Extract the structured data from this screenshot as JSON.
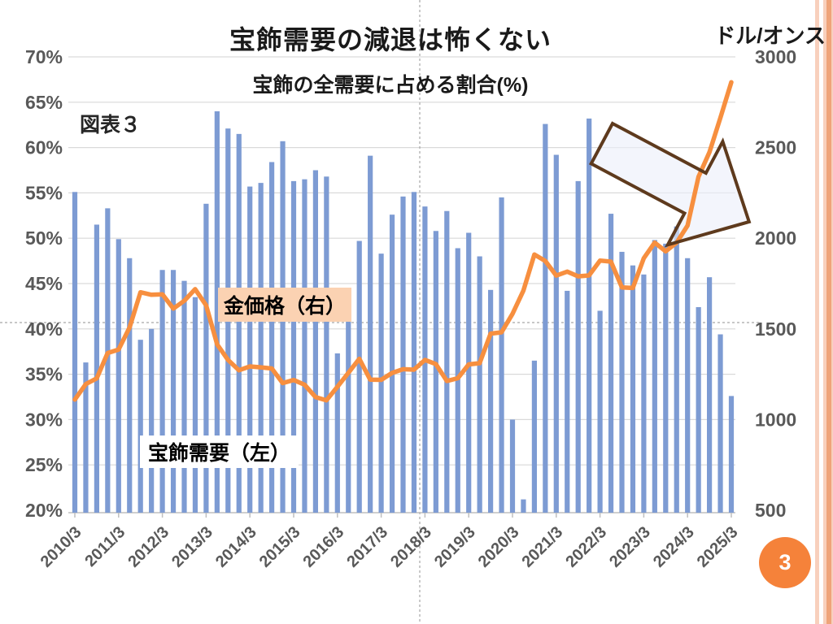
{
  "slide": {
    "title": "宝飾需要の減退は怖くない",
    "subtitle": "宝飾の全需要に占める割合(%)",
    "figure_label": "図表３",
    "right_axis_unit": "ドル/オンス",
    "page_number": "3"
  },
  "series_labels": {
    "bars": "宝飾需要（左）",
    "line": "金価格（右）"
  },
  "axes": {
    "left_ticks": [
      "70%",
      "65%",
      "60%",
      "55%",
      "50%",
      "45%",
      "40%",
      "35%",
      "30%",
      "25%",
      "20%"
    ],
    "right_ticks": [
      "3000",
      "2500",
      "2000",
      "1500",
      "1000",
      "500"
    ],
    "x_ticks": [
      "2010/3",
      "2011/3",
      "2012/3",
      "2013/3",
      "2014/3",
      "2015/3",
      "2016/3",
      "2017/3",
      "2018/3",
      "2019/3",
      "2020/3",
      "2021/3",
      "2022/3",
      "2023/3",
      "2024/3",
      "2025/3"
    ]
  },
  "colors": {
    "bar": "#7d9bd3",
    "line": "#f78f3f",
    "gridline": "#d9d9d9",
    "axis_line": "#bfbfbf",
    "tick_text": "#595959",
    "guide": "#a6a6a6",
    "arrow_fill": "#ebeffa",
    "arrow_stroke": "#5e3a1d",
    "line_label_bg": "#fbd2b2",
    "badge": "#f5823a",
    "stripe_light": "#f8d0bd",
    "stripe_dark": "#efa47a"
  },
  "chart_data": {
    "type": "combo (bar + line)",
    "x_frequency": "quarterly",
    "x": [
      "2010/3",
      "2010/6",
      "2010/9",
      "2010/12",
      "2011/3",
      "2011/6",
      "2011/9",
      "2011/12",
      "2012/3",
      "2012/6",
      "2012/9",
      "2012/12",
      "2013/3",
      "2013/6",
      "2013/9",
      "2013/12",
      "2014/3",
      "2014/6",
      "2014/9",
      "2014/12",
      "2015/3",
      "2015/6",
      "2015/9",
      "2015/12",
      "2016/3",
      "2016/6",
      "2016/9",
      "2016/12",
      "2017/3",
      "2017/6",
      "2017/9",
      "2017/12",
      "2018/3",
      "2018/6",
      "2018/9",
      "2018/12",
      "2019/3",
      "2019/6",
      "2019/9",
      "2019/12",
      "2020/3",
      "2020/6",
      "2020/9",
      "2020/12",
      "2021/3",
      "2021/6",
      "2021/9",
      "2021/12",
      "2022/3",
      "2022/6",
      "2022/9",
      "2022/12",
      "2023/3",
      "2023/6",
      "2023/9",
      "2023/12",
      "2024/3",
      "2024/6",
      "2024/9",
      "2024/12",
      "2025/3"
    ],
    "series": [
      {
        "name": "宝飾需要（左）",
        "type": "bar",
        "axis": "left",
        "unit": "%",
        "values": [
          55.1,
          36.3,
          51.5,
          53.3,
          49.9,
          47.8,
          38.8,
          40.0,
          46.5,
          46.5,
          45.3,
          43.5,
          53.8,
          64.0,
          62.1,
          61.5,
          55.7,
          56.1,
          58.4,
          60.7,
          56.3,
          56.5,
          57.5,
          56.8,
          37.3,
          42.0,
          49.7,
          59.1,
          48.3,
          52.6,
          54.6,
          55.1,
          53.5,
          50.8,
          53.0,
          48.9,
          50.6,
          48.0,
          44.3,
          54.5,
          30.0,
          21.2,
          36.5,
          62.6,
          59.2,
          44.2,
          56.3,
          63.2,
          42.0,
          52.7,
          48.5,
          47.0,
          46.0,
          49.8,
          49.4,
          51.3,
          47.8,
          42.4,
          45.7,
          39.4,
          32.6
        ]
      },
      {
        "name": "金価格（右）",
        "type": "line",
        "axis": "right",
        "unit": "ドル/オンス",
        "values": [
          1110,
          1196,
          1227,
          1367,
          1386,
          1508,
          1702,
          1688,
          1691,
          1612,
          1655,
          1719,
          1630,
          1415,
          1329,
          1272,
          1293,
          1288,
          1282,
          1201,
          1218,
          1192,
          1124,
          1106,
          1181,
          1258,
          1335,
          1220,
          1219,
          1257,
          1278,
          1275,
          1329,
          1306,
          1213,
          1228,
          1304,
          1311,
          1474,
          1481,
          1583,
          1711,
          1910,
          1874,
          1794,
          1816,
          1790,
          1795,
          1877,
          1871,
          1729,
          1726,
          1890,
          1976,
          1928,
          1976,
          2070,
          2338,
          2474,
          2663,
          2860
        ]
      }
    ],
    "title": "宝飾需要の減退は怖くない",
    "subtitle": "宝飾の全需要に占める割合(%)",
    "ylabel_left": "%",
    "ylabel_right": "ドル/オンス",
    "ylim_left": [
      20,
      70
    ],
    "ylim_right": [
      500,
      3000
    ],
    "grid": true,
    "legend_position": "inline text labels",
    "annotations": [
      "large hollow arrow pointing down-right over 2023-2025 area"
    ]
  }
}
